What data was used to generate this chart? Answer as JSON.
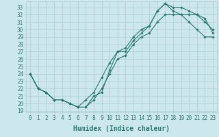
{
  "xlabel": "Humidex (Indice chaleur)",
  "xlim": [
    -0.5,
    23.5
  ],
  "ylim": [
    18.8,
    33.8
  ],
  "yticks": [
    19,
    20,
    21,
    22,
    23,
    24,
    25,
    26,
    27,
    28,
    29,
    30,
    31,
    32,
    33
  ],
  "xticks": [
    0,
    1,
    2,
    3,
    4,
    5,
    6,
    7,
    8,
    9,
    10,
    11,
    12,
    13,
    14,
    15,
    16,
    17,
    18,
    19,
    20,
    21,
    22,
    23
  ],
  "bg_color": "#cce8ec",
  "grid_color": "#aacccc",
  "line_color": "#2a7a70",
  "line1_x": [
    0,
    1,
    2,
    3,
    4,
    5,
    6,
    7,
    8,
    9,
    10,
    11,
    12,
    13,
    14,
    15,
    16,
    17,
    18,
    19,
    20,
    21,
    22,
    23
  ],
  "line1_y": [
    24,
    22,
    21.5,
    20.5,
    20.5,
    20,
    19.5,
    19.5,
    21,
    21.5,
    24.5,
    27,
    27,
    28.5,
    29.5,
    30.5,
    32.5,
    33.5,
    33,
    33,
    32.5,
    32,
    31,
    30
  ],
  "line2_x": [
    0,
    1,
    2,
    3,
    4,
    5,
    6,
    7,
    8,
    9,
    10,
    11,
    12,
    13,
    14,
    15,
    16,
    17,
    18,
    19,
    20,
    21,
    22,
    23
  ],
  "line2_y": [
    24,
    22,
    21.5,
    20.5,
    20.5,
    20,
    19.5,
    20.5,
    21.5,
    23.5,
    25.5,
    27,
    27.5,
    29,
    30,
    30.5,
    32.5,
    33.5,
    32.5,
    32,
    32,
    32,
    31.5,
    29.5
  ],
  "line3_x": [
    0,
    1,
    2,
    3,
    4,
    5,
    6,
    7,
    8,
    9,
    10,
    11,
    12,
    13,
    14,
    15,
    16,
    17,
    18,
    19,
    20,
    21,
    22,
    23
  ],
  "line3_y": [
    24,
    22,
    21.5,
    20.5,
    20.5,
    20,
    19.5,
    19.5,
    20.5,
    22,
    24,
    26,
    26.5,
    28,
    29,
    29.5,
    31,
    32,
    32,
    32,
    31,
    30,
    29,
    29
  ],
  "marker": "D",
  "markersize": 1.8,
  "linewidth": 0.8,
  "tick_fontsize": 5.5,
  "label_fontsize": 7.0
}
